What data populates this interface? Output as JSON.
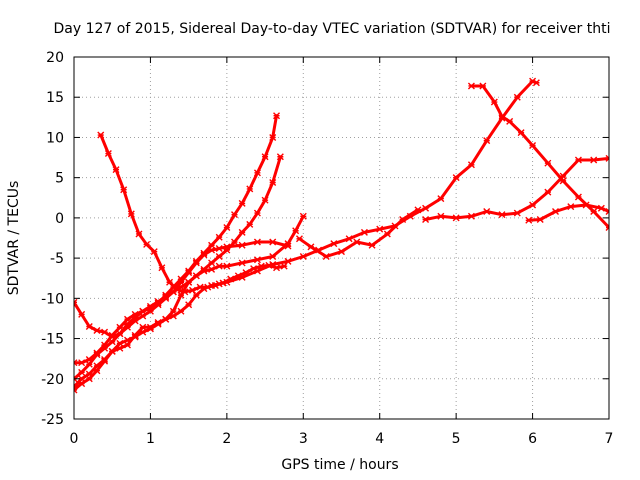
{
  "chart_data": {
    "type": "line",
    "title": "Day 127 of 2015, Sidereal Day-to-day VTEC variation (SDTVAR) for receiver thti",
    "xlabel": "GPS time / hours",
    "ylabel": "SDTVAR / TECUs",
    "xlim": [
      0,
      7
    ],
    "ylim": [
      -25,
      20
    ],
    "xticks": [
      "0",
      "1",
      "2",
      "3",
      "4",
      "5",
      "6",
      "7"
    ],
    "yticks": [
      "-25",
      "-20",
      "-15",
      "-10",
      "-5",
      "0",
      "5",
      "10",
      "15",
      "20"
    ],
    "grid": true,
    "legend": "none",
    "color": "#ff0000",
    "series": [
      {
        "x": [
          0.35,
          0.45,
          0.55,
          0.65,
          0.75,
          0.85,
          0.95,
          1.05,
          1.15,
          1.25,
          1.35,
          1.45,
          1.55,
          1.65,
          1.75,
          1.85,
          1.95,
          2.05,
          2.15,
          2.25,
          2.35,
          2.45,
          2.55,
          2.65,
          2.75
        ],
        "y": [
          10.3,
          8.0,
          6.0,
          3.5,
          0.5,
          -2.0,
          -3.3,
          -4.2,
          -6.2,
          -8.0,
          -8.9,
          -9.2,
          -9.0,
          -8.6,
          -8.6,
          -8.4,
          -8.1,
          -7.6,
          -7.2,
          -6.8,
          -6.3,
          -6.0,
          -5.9,
          -6.2,
          -6.0
        ]
      },
      {
        "x": [
          0.0,
          0.1,
          0.2,
          0.3,
          0.4,
          0.5,
          0.6,
          0.7,
          0.8,
          0.9,
          1.0,
          1.1,
          1.2,
          1.3,
          1.4,
          1.5,
          1.6,
          1.7,
          1.8,
          1.9,
          2.0,
          2.1,
          2.2,
          2.3,
          2.4,
          2.5,
          2.6,
          2.65
        ],
        "y": [
          -10.5,
          -12.0,
          -13.5,
          -14.0,
          -14.2,
          -14.8,
          -14.4,
          -13.2,
          -12.4,
          -11.6,
          -11.2,
          -10.6,
          -9.6,
          -8.6,
          -7.6,
          -6.6,
          -5.4,
          -4.4,
          -3.4,
          -2.4,
          -1.2,
          0.4,
          1.8,
          3.6,
          5.6,
          7.6,
          10.0,
          12.7
        ]
      },
      {
        "x": [
          0.0,
          0.1,
          0.2,
          0.3,
          0.4,
          0.5,
          0.6,
          0.7,
          0.8,
          0.9,
          1.0,
          1.1,
          1.2,
          1.3,
          1.4,
          1.5,
          1.6,
          1.7,
          1.8,
          1.9,
          2.0,
          2.1,
          2.2,
          2.3,
          2.4,
          2.5,
          2.6,
          2.7
        ],
        "y": [
          -18.0,
          -18.0,
          -17.6,
          -16.8,
          -15.8,
          -14.6,
          -13.6,
          -12.6,
          -12.0,
          -11.6,
          -11.0,
          -10.4,
          -9.8,
          -9.2,
          -8.6,
          -8.0,
          -7.2,
          -6.4,
          -5.6,
          -4.8,
          -4.0,
          -3.0,
          -1.8,
          -0.8,
          0.6,
          2.2,
          4.4,
          7.6
        ]
      },
      {
        "x": [
          0.0,
          0.1,
          0.2,
          0.3,
          0.4,
          0.5,
          0.6,
          0.7,
          0.8,
          0.9,
          1.0,
          1.1,
          1.2,
          1.3,
          1.4,
          1.5,
          1.6,
          1.7,
          1.8,
          1.9,
          2.0,
          2.2,
          2.4,
          2.6,
          2.8
        ],
        "y": [
          -20.0,
          -19.2,
          -18.2,
          -17.0,
          -16.2,
          -15.4,
          -14.4,
          -13.6,
          -12.8,
          -12.2,
          -11.6,
          -10.8,
          -10.0,
          -9.2,
          -8.0,
          -6.8,
          -5.6,
          -4.6,
          -4.0,
          -3.8,
          -3.6,
          -3.4,
          -3.0,
          -3.0,
          -3.5
        ]
      },
      {
        "x": [
          0.0,
          0.1,
          0.2,
          0.3,
          0.4,
          0.5,
          0.6,
          0.7,
          0.8,
          0.9,
          1.0,
          1.1,
          1.2,
          1.3,
          1.4,
          1.5,
          1.6,
          1.7,
          1.8,
          1.9,
          2.0,
          2.2,
          2.4,
          2.6,
          2.8,
          2.9,
          3.0
        ],
        "y": [
          -21.0,
          -20.0,
          -19.4,
          -18.4,
          -17.6,
          -16.6,
          -15.6,
          -15.2,
          -14.8,
          -14.2,
          -13.8,
          -13.2,
          -12.6,
          -11.6,
          -9.6,
          -8.0,
          -7.2,
          -6.6,
          -6.4,
          -6.0,
          -6.0,
          -5.6,
          -5.2,
          -4.8,
          -3.2,
          -1.6,
          0.2
        ]
      },
      {
        "x": [
          0.0,
          0.1,
          0.2,
          0.3,
          0.4,
          0.5,
          0.6,
          0.7,
          0.8,
          0.9,
          1.0,
          1.1,
          1.2,
          1.3,
          1.4,
          1.5,
          1.6,
          1.7,
          1.8,
          1.9,
          2.0,
          2.2,
          2.4,
          2.6,
          2.8,
          3.0,
          3.2,
          3.4,
          3.6,
          3.8,
          4.0,
          4.2,
          4.4,
          4.6,
          4.8,
          5.0,
          5.2,
          5.4,
          5.6,
          5.8,
          6.0,
          6.05
        ],
        "y": [
          -21.4,
          -20.6,
          -20.0,
          -19.0,
          -17.8,
          -16.6,
          -16.2,
          -15.8,
          -14.6,
          -13.6,
          -13.6,
          -13.0,
          -12.6,
          -12.2,
          -11.6,
          -10.8,
          -9.6,
          -8.8,
          -8.4,
          -8.2,
          -8.0,
          -7.4,
          -6.6,
          -5.8,
          -5.4,
          -4.8,
          -4.0,
          -3.2,
          -2.6,
          -1.8,
          -1.4,
          -1.0,
          0.2,
          1.2,
          2.4,
          5.0,
          6.6,
          9.6,
          12.4,
          15.0,
          17.0,
          16.8
        ]
      },
      {
        "x": [
          2.95,
          3.1,
          3.3,
          3.5,
          3.7,
          3.9,
          4.1,
          4.3,
          4.5
        ],
        "y": [
          -2.6,
          -3.6,
          -4.8,
          -4.2,
          -3.0,
          -3.4,
          -2.0,
          -0.2,
          1.0
        ]
      },
      {
        "x": [
          4.6,
          4.8,
          5.0,
          5.2,
          5.4,
          5.6,
          5.8,
          6.0,
          6.2,
          6.4,
          6.6,
          6.8,
          7.0
        ],
        "y": [
          -0.2,
          0.2,
          0.0,
          0.2,
          0.8,
          0.4,
          0.6,
          1.6,
          3.2,
          5.2,
          7.2,
          7.2,
          7.4
        ]
      },
      {
        "x": [
          5.2,
          5.35,
          5.5,
          5.6,
          5.7,
          5.85,
          6.0,
          6.2,
          6.4,
          6.6,
          6.8,
          7.0
        ],
        "y": [
          16.4,
          16.4,
          14.4,
          12.6,
          12.0,
          10.6,
          9.0,
          6.8,
          4.6,
          2.6,
          0.8,
          -1.2
        ]
      },
      {
        "x": [
          5.95,
          6.1,
          6.3,
          6.5,
          6.7,
          6.9,
          7.0
        ],
        "y": [
          -0.3,
          -0.2,
          0.8,
          1.4,
          1.6,
          1.2,
          0.8
        ]
      }
    ]
  }
}
